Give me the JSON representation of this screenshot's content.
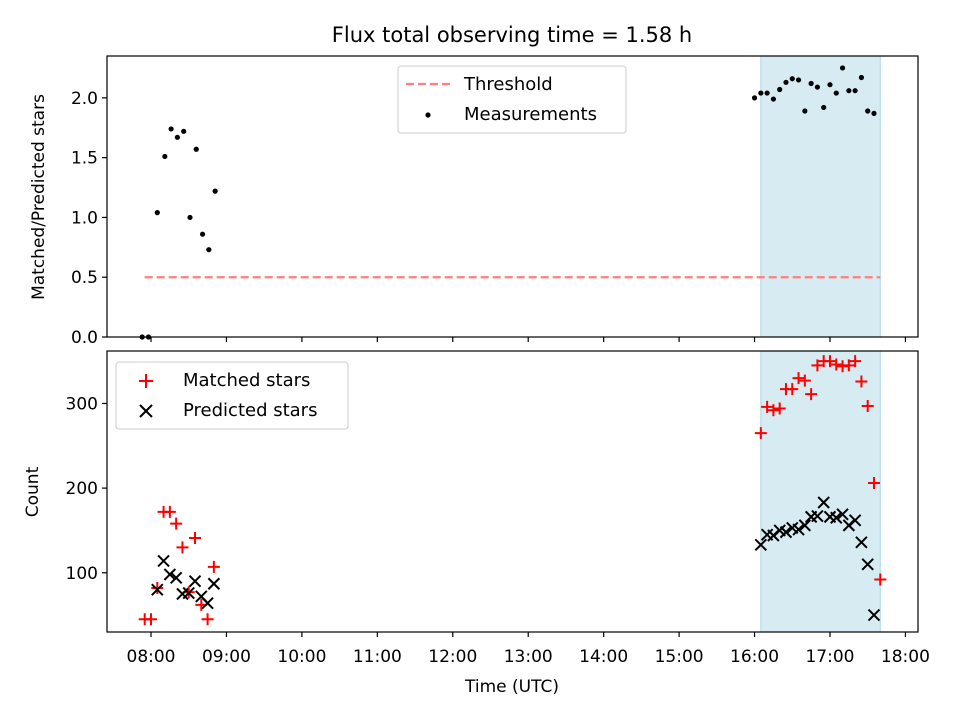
{
  "title": "Flux total observing time = 1.58 h",
  "chart_data": [
    {
      "type": "scatter",
      "ylabel": "Matched/Predicted stars",
      "ylim": [
        0,
        2.35
      ],
      "xlim": [
        "07:25",
        "18:10"
      ],
      "yticks": [
        0.0,
        0.5,
        1.0,
        1.5,
        2.0
      ],
      "ytick_labels": [
        "0.0",
        "0.5",
        "1.0",
        "1.5",
        "2.0"
      ],
      "legend_position": "top-center",
      "threshold": {
        "name": "Threshold",
        "value": 0.5,
        "x_range": [
          "07:55",
          "17:40"
        ],
        "color": "#ff7f7f"
      },
      "highlight": {
        "x_range": [
          "16:05",
          "17:40"
        ],
        "color": "#add8e6"
      },
      "series": [
        {
          "name": "Measurements",
          "color": "#000000",
          "marker": "dot",
          "points": [
            [
              "07:53",
              0.0
            ],
            [
              "07:58",
              0.0
            ],
            [
              "08:05",
              1.04
            ],
            [
              "08:11",
              1.51
            ],
            [
              "08:16",
              1.74
            ],
            [
              "08:21",
              1.67
            ],
            [
              "08:26",
              1.72
            ],
            [
              "08:31",
              1.0
            ],
            [
              "08:36",
              1.57
            ],
            [
              "08:41",
              0.86
            ],
            [
              "08:46",
              0.73
            ],
            [
              "08:51",
              1.22
            ],
            [
              "16:00",
              2.0
            ],
            [
              "16:05",
              2.04
            ],
            [
              "16:10",
              2.04
            ],
            [
              "16:15",
              1.99
            ],
            [
              "16:20",
              2.07
            ],
            [
              "16:25",
              2.13
            ],
            [
              "16:30",
              2.16
            ],
            [
              "16:35",
              2.15
            ],
            [
              "16:40",
              1.89
            ],
            [
              "16:45",
              2.12
            ],
            [
              "16:50",
              2.09
            ],
            [
              "16:55",
              1.92
            ],
            [
              "17:00",
              2.11
            ],
            [
              "17:05",
              2.04
            ],
            [
              "17:10",
              2.25
            ],
            [
              "17:15",
              2.06
            ],
            [
              "17:20",
              2.06
            ],
            [
              "17:25",
              2.17
            ],
            [
              "17:30",
              1.89
            ],
            [
              "17:35",
              1.87
            ]
          ]
        }
      ]
    },
    {
      "type": "scatter",
      "ylabel": "Count",
      "xlabel": "Time (UTC)",
      "ylim": [
        30,
        362
      ],
      "xlim": [
        "07:25",
        "18:10"
      ],
      "yticks": [
        100,
        200,
        300
      ],
      "ytick_labels": [
        "100",
        "200",
        "300"
      ],
      "xticks": [
        "08:00",
        "09:00",
        "10:00",
        "11:00",
        "12:00",
        "13:00",
        "14:00",
        "15:00",
        "16:00",
        "17:00",
        "18:00"
      ],
      "legend_position": "top-left",
      "highlight": {
        "x_range": [
          "16:05",
          "17:40"
        ],
        "color": "#add8e6"
      },
      "series": [
        {
          "name": "Matched stars",
          "color": "#ff0000",
          "marker": "plus",
          "points": [
            [
              "07:55",
              45
            ],
            [
              "08:00",
              45
            ],
            [
              "08:05",
              82
            ],
            [
              "08:10",
              172
            ],
            [
              "08:15",
              172
            ],
            [
              "08:20",
              158
            ],
            [
              "08:25",
              130
            ],
            [
              "08:30",
              77
            ],
            [
              "08:35",
              141
            ],
            [
              "08:40",
              62
            ],
            [
              "08:45",
              45
            ],
            [
              "08:50",
              107
            ],
            [
              "16:05",
              265
            ],
            [
              "16:10",
              296
            ],
            [
              "16:15",
              292
            ],
            [
              "16:20",
              294
            ],
            [
              "16:25",
              317
            ],
            [
              "16:30",
              317
            ],
            [
              "16:35",
              330
            ],
            [
              "16:40",
              327
            ],
            [
              "16:45",
              311
            ],
            [
              "16:50",
              345
            ],
            [
              "16:55",
              350
            ],
            [
              "17:00",
              350
            ],
            [
              "17:05",
              346
            ],
            [
              "17:10",
              344
            ],
            [
              "17:15",
              345
            ],
            [
              "17:20",
              350
            ],
            [
              "17:25",
              326
            ],
            [
              "17:30",
              297
            ],
            [
              "17:35",
              206
            ],
            [
              "17:40",
              92
            ]
          ]
        },
        {
          "name": "Predicted stars",
          "color": "#000000",
          "marker": "x",
          "points": [
            [
              "08:05",
              80
            ],
            [
              "08:10",
              114
            ],
            [
              "08:15",
              98
            ],
            [
              "08:20",
              94
            ],
            [
              "08:25",
              75
            ],
            [
              "08:30",
              76
            ],
            [
              "08:35",
              90
            ],
            [
              "08:40",
              72
            ],
            [
              "08:45",
              64
            ],
            [
              "08:50",
              87
            ],
            [
              "16:05",
              133
            ],
            [
              "16:10",
              145
            ],
            [
              "16:15",
              144
            ],
            [
              "16:20",
              150
            ],
            [
              "16:25",
              148
            ],
            [
              "16:30",
              153
            ],
            [
              "16:35",
              151
            ],
            [
              "16:40",
              156
            ],
            [
              "16:45",
              166
            ],
            [
              "16:50",
              167
            ],
            [
              "16:55",
              183
            ],
            [
              "17:00",
              166
            ],
            [
              "17:05",
              165
            ],
            [
              "17:10",
              169
            ],
            [
              "17:15",
              156
            ],
            [
              "17:20",
              162
            ],
            [
              "17:25",
              136
            ],
            [
              "17:30",
              110
            ],
            [
              "17:35",
              50
            ]
          ]
        }
      ]
    }
  ]
}
